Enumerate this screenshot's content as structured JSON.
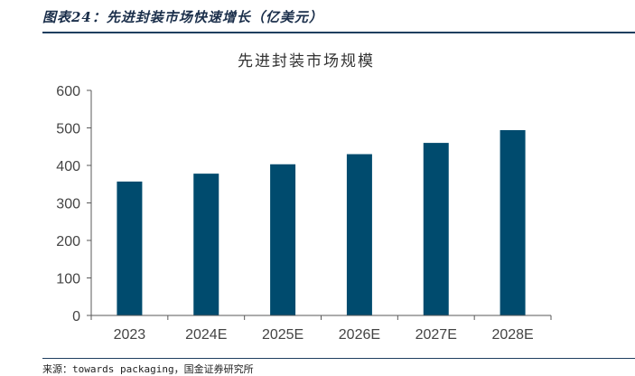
{
  "figure": {
    "heading": "图表24：先进封装市场快速增长（亿美元）",
    "source": "来源：towards packaging，国金证券研究所"
  },
  "colors": {
    "bar": "#004b6e",
    "axis": "#595959"
  },
  "chart_data": {
    "type": "bar",
    "title": "先进封装市场规模",
    "categories": [
      "2023",
      "2024E",
      "2025E",
      "2026E",
      "2027E",
      "2028E"
    ],
    "values": [
      357,
      378,
      403,
      430,
      460,
      494
    ],
    "xlabel": "",
    "ylabel": "",
    "ylim": [
      0,
      600
    ],
    "yticks": [
      0,
      100,
      200,
      300,
      400,
      500,
      600
    ],
    "grid": false,
    "legend": "none"
  }
}
